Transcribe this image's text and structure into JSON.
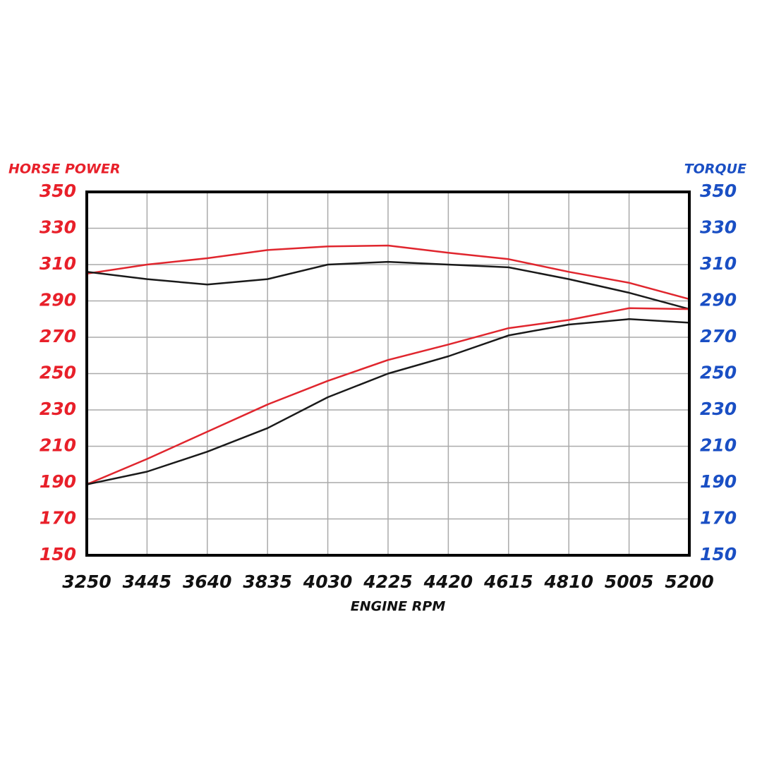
{
  "chart_data": {
    "type": "line",
    "y_label": "HORSE POWER",
    "y2_label": "TORQUE",
    "x_label": "ENGINE RPM",
    "x": [
      3250,
      3445,
      3640,
      3835,
      4030,
      4225,
      4420,
      4615,
      4810,
      5005,
      5200
    ],
    "xlim": [
      3250,
      5200
    ],
    "xticks": [
      3250,
      3445,
      3640,
      3835,
      4030,
      4225,
      4420,
      4615,
      4810,
      5005,
      5200
    ],
    "ylim": [
      150,
      350
    ],
    "yticks": [
      150,
      170,
      190,
      210,
      230,
      250,
      270,
      290,
      310,
      330,
      350
    ],
    "y2lim": [
      150,
      350
    ],
    "y2ticks": [
      150,
      170,
      190,
      210,
      230,
      250,
      270,
      290,
      310,
      330,
      350
    ],
    "grid": true,
    "y_color": "#e8202a",
    "y2_color": "#1a4fc4",
    "series": [
      {
        "color": "#e0262e",
        "axis": "y2",
        "values": [
          305,
          310,
          313.5,
          318,
          320,
          320.5,
          316.5,
          313,
          306,
          300,
          291
        ]
      },
      {
        "color": "#1a1a1a",
        "axis": "y2",
        "values": [
          306,
          302,
          299,
          302,
          310,
          311.5,
          310,
          308.5,
          302,
          294.5,
          285.5
        ]
      },
      {
        "color": "#e0262e",
        "values": [
          189,
          203,
          218,
          233,
          246,
          257.5,
          266,
          275,
          279.5,
          286,
          285.5
        ]
      },
      {
        "color": "#1a1a1a",
        "values": [
          189,
          196,
          207,
          220,
          237,
          250,
          259.5,
          271,
          277,
          280,
          278
        ]
      }
    ]
  }
}
